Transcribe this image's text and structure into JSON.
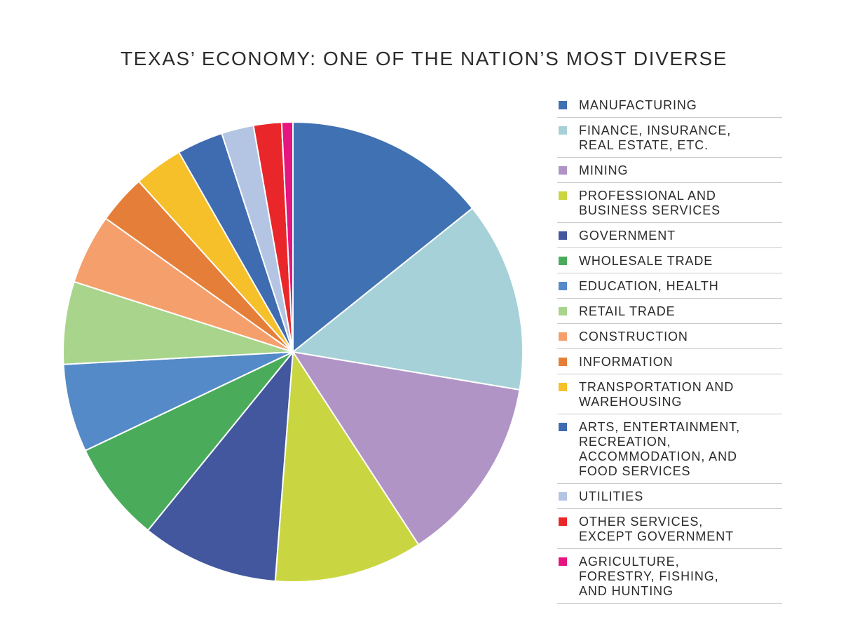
{
  "title": "TEXAS’ ECONOMY: ONE OF THE NATION’S MOST DIVERSE",
  "chart_data": {
    "type": "pie",
    "title": "TEXAS’ ECONOMY: ONE OF THE NATION’S MOST DIVERSE",
    "legend_position": "right",
    "start_angle": "12 o'clock, clockwise",
    "slices": [
      {
        "label": "MANUFACTURING",
        "value": 14.5,
        "color": "#4071b2"
      },
      {
        "label": "FINANCE, INSURANCE,\nREAL ESTATE, ETC.",
        "value": 13.6,
        "color": "#a6d1d8"
      },
      {
        "label": "MINING",
        "value": 13.4,
        "color": "#b094c6"
      },
      {
        "label": "PROFESSIONAL AND\nBUSINESS SERVICES",
        "value": 10.6,
        "color": "#cad542"
      },
      {
        "label": "GOVERNMENT",
        "value": 9.8,
        "color": "#42579e"
      },
      {
        "label": "WHOLESALE TRADE",
        "value": 7.2,
        "color": "#4aac5b"
      },
      {
        "label": "EDUCATION, HEALTH",
        "value": 6.3,
        "color": "#548ac8"
      },
      {
        "label": "RETAIL TRADE",
        "value": 5.9,
        "color": "#a8d48c"
      },
      {
        "label": "CONSTRUCTION",
        "value": 5.0,
        "color": "#f5a06c"
      },
      {
        "label": "INFORMATION",
        "value": 3.5,
        "color": "#e57e38"
      },
      {
        "label": "TRANSPORTATION AND\nWAREHOUSING",
        "value": 3.5,
        "color": "#f6c02b"
      },
      {
        "label": "ARTS, ENTERTAINMENT,\nRECREATION,\nACCOMMODATION, AND\nFOOD SERVICES",
        "value": 3.3,
        "color": "#3f6cb0"
      },
      {
        "label": "UTILITIES",
        "value": 2.3,
        "color": "#b3c5e2"
      },
      {
        "label": "OTHER SERVICES,\nEXCEPT GOVERNMENT",
        "value": 2.0,
        "color": "#e9272a"
      },
      {
        "label": "AGRICULTURE,\nFORESTRY, FISHING,\nAND HUNTING",
        "value": 0.8,
        "color": "#e5147f"
      }
    ]
  }
}
